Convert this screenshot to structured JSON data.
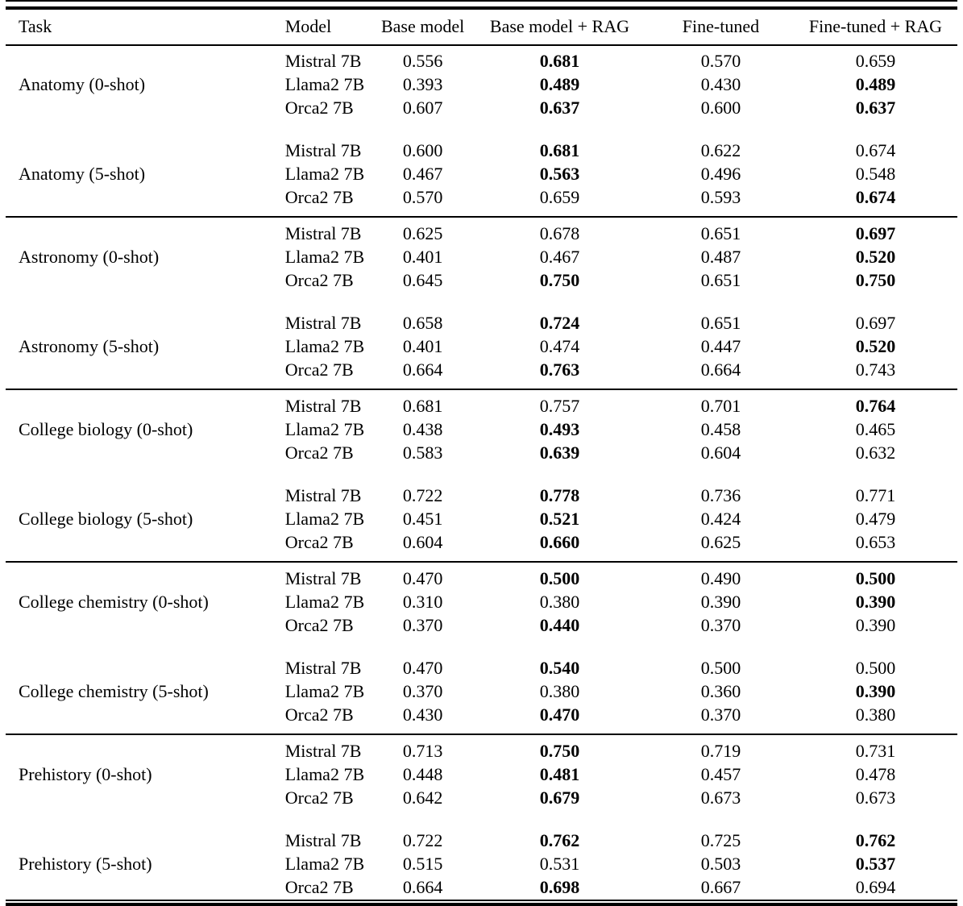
{
  "table": {
    "columns": [
      "Task",
      "Model",
      "Base model",
      "Base model + RAG",
      "Fine-tuned",
      "Fine-tuned + RAG"
    ],
    "groups": [
      {
        "task": "Anatomy (0-shot)",
        "rows": [
          {
            "model": "Mistral 7B",
            "values": [
              "0.556",
              "0.681",
              "0.570",
              "0.659"
            ],
            "bold": [
              false,
              true,
              false,
              false
            ]
          },
          {
            "model": "Llama2 7B",
            "values": [
              "0.393",
              "0.489",
              "0.430",
              "0.489"
            ],
            "bold": [
              false,
              true,
              false,
              true
            ]
          },
          {
            "model": "Orca2 7B",
            "values": [
              "0.607",
              "0.637",
              "0.600",
              "0.637"
            ],
            "bold": [
              false,
              true,
              false,
              true
            ]
          }
        ]
      },
      {
        "task": "Anatomy (5-shot)",
        "rows": [
          {
            "model": "Mistral 7B",
            "values": [
              "0.600",
              "0.681",
              "0.622",
              "0.674"
            ],
            "bold": [
              false,
              true,
              false,
              false
            ]
          },
          {
            "model": "Llama2 7B",
            "values": [
              "0.467",
              "0.563",
              "0.496",
              "0.548"
            ],
            "bold": [
              false,
              true,
              false,
              false
            ]
          },
          {
            "model": "Orca2 7B",
            "values": [
              "0.570",
              "0.659",
              "0.593",
              "0.674"
            ],
            "bold": [
              false,
              false,
              false,
              true
            ]
          }
        ]
      },
      {
        "task": "Astronomy (0-shot)",
        "rows": [
          {
            "model": "Mistral 7B",
            "values": [
              "0.625",
              "0.678",
              "0.651",
              "0.697"
            ],
            "bold": [
              false,
              false,
              false,
              true
            ]
          },
          {
            "model": "Llama2 7B",
            "values": [
              "0.401",
              "0.467",
              "0.487",
              "0.520"
            ],
            "bold": [
              false,
              false,
              false,
              true
            ]
          },
          {
            "model": "Orca2 7B",
            "values": [
              "0.645",
              "0.750",
              "0.651",
              "0.750"
            ],
            "bold": [
              false,
              true,
              false,
              true
            ]
          }
        ]
      },
      {
        "task": "Astronomy (5-shot)",
        "rows": [
          {
            "model": "Mistral 7B",
            "values": [
              "0.658",
              "0.724",
              "0.651",
              "0.697"
            ],
            "bold": [
              false,
              true,
              false,
              false
            ]
          },
          {
            "model": "Llama2 7B",
            "values": [
              "0.401",
              "0.474",
              "0.447",
              "0.520"
            ],
            "bold": [
              false,
              false,
              false,
              true
            ]
          },
          {
            "model": "Orca2 7B",
            "values": [
              "0.664",
              "0.763",
              "0.664",
              "0.743"
            ],
            "bold": [
              false,
              true,
              false,
              false
            ]
          }
        ]
      },
      {
        "task": "College biology (0-shot)",
        "rows": [
          {
            "model": "Mistral 7B",
            "values": [
              "0.681",
              "0.757",
              "0.701",
              "0.764"
            ],
            "bold": [
              false,
              false,
              false,
              true
            ]
          },
          {
            "model": "Llama2 7B",
            "values": [
              "0.438",
              "0.493",
              "0.458",
              "0.465"
            ],
            "bold": [
              false,
              true,
              false,
              false
            ]
          },
          {
            "model": "Orca2 7B",
            "values": [
              "0.583",
              "0.639",
              "0.604",
              "0.632"
            ],
            "bold": [
              false,
              true,
              false,
              false
            ]
          }
        ]
      },
      {
        "task": "College biology (5-shot)",
        "rows": [
          {
            "model": "Mistral 7B",
            "values": [
              "0.722",
              "0.778",
              "0.736",
              "0.771"
            ],
            "bold": [
              false,
              true,
              false,
              false
            ]
          },
          {
            "model": "Llama2 7B",
            "values": [
              "0.451",
              "0.521",
              "0.424",
              "0.479"
            ],
            "bold": [
              false,
              true,
              false,
              false
            ]
          },
          {
            "model": "Orca2 7B",
            "values": [
              "0.604",
              "0.660",
              "0.625",
              "0.653"
            ],
            "bold": [
              false,
              true,
              false,
              false
            ]
          }
        ]
      },
      {
        "task": "College chemistry (0-shot)",
        "rows": [
          {
            "model": "Mistral 7B",
            "values": [
              "0.470",
              "0.500",
              "0.490",
              "0.500"
            ],
            "bold": [
              false,
              true,
              false,
              true
            ]
          },
          {
            "model": "Llama2 7B",
            "values": [
              "0.310",
              "0.380",
              "0.390",
              "0.390"
            ],
            "bold": [
              false,
              false,
              false,
              true
            ]
          },
          {
            "model": "Orca2 7B",
            "values": [
              "0.370",
              "0.440",
              "0.370",
              "0.390"
            ],
            "bold": [
              false,
              true,
              false,
              false
            ]
          }
        ]
      },
      {
        "task": "College chemistry (5-shot)",
        "rows": [
          {
            "model": "Mistral 7B",
            "values": [
              "0.470",
              "0.540",
              "0.500",
              "0.500"
            ],
            "bold": [
              false,
              true,
              false,
              false
            ]
          },
          {
            "model": "Llama2 7B",
            "values": [
              "0.370",
              "0.380",
              "0.360",
              "0.390"
            ],
            "bold": [
              false,
              false,
              false,
              true
            ]
          },
          {
            "model": "Orca2 7B",
            "values": [
              "0.430",
              "0.470",
              "0.370",
              "0.380"
            ],
            "bold": [
              false,
              true,
              false,
              false
            ]
          }
        ]
      },
      {
        "task": "Prehistory (0-shot)",
        "rows": [
          {
            "model": "Mistral 7B",
            "values": [
              "0.713",
              "0.750",
              "0.719",
              "0.731"
            ],
            "bold": [
              false,
              true,
              false,
              false
            ]
          },
          {
            "model": "Llama2 7B",
            "values": [
              "0.448",
              "0.481",
              "0.457",
              "0.478"
            ],
            "bold": [
              false,
              true,
              false,
              false
            ]
          },
          {
            "model": "Orca2 7B",
            "values": [
              "0.642",
              "0.679",
              "0.673",
              "0.673"
            ],
            "bold": [
              false,
              true,
              false,
              false
            ]
          }
        ]
      },
      {
        "task": "Prehistory (5-shot)",
        "rows": [
          {
            "model": "Mistral 7B",
            "values": [
              "0.722",
              "0.762",
              "0.725",
              "0.762"
            ],
            "bold": [
              false,
              true,
              false,
              true
            ]
          },
          {
            "model": "Llama2 7B",
            "values": [
              "0.515",
              "0.531",
              "0.503",
              "0.537"
            ],
            "bold": [
              false,
              false,
              false,
              true
            ]
          },
          {
            "model": "Orca2 7B",
            "values": [
              "0.664",
              "0.698",
              "0.667",
              "0.694"
            ],
            "bold": [
              false,
              true,
              false,
              false
            ]
          }
        ]
      }
    ]
  },
  "style": {
    "text_color": "#000000",
    "background": "#ffffff",
    "rule_color": "#000000"
  }
}
